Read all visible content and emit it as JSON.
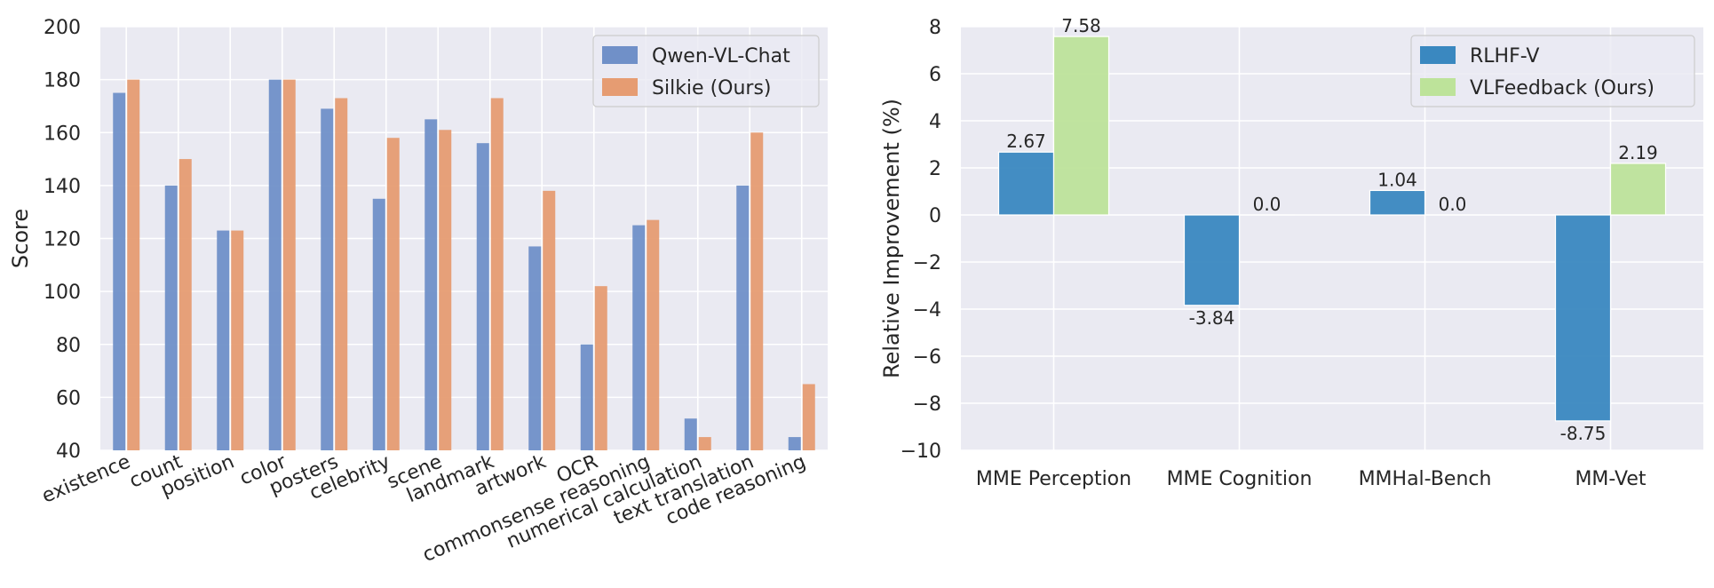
{
  "colors": {
    "background": "#eaeaf2",
    "grid": "#ffffff",
    "text": "#262626",
    "legend_border": "#cccccc"
  },
  "chart_data": [
    {
      "type": "bar",
      "title": "",
      "xlabel": "",
      "ylabel": "Score",
      "ylim": [
        40,
        200
      ],
      "yticks": [
        40,
        60,
        80,
        100,
        120,
        140,
        160,
        180,
        200
      ],
      "grid": true,
      "legend_position": "top-right",
      "xtick_rotation": "30-degree",
      "categories": [
        "existence",
        "count",
        "position",
        "color",
        "posters",
        "celebrity",
        "scene",
        "landmark",
        "artwork",
        "OCR",
        "commonsense reasoning",
        "numerical calculation",
        "text translation",
        "code reasoning"
      ],
      "series": [
        {
          "name": "Qwen-VL-Chat",
          "color": "#7090c8",
          "values": [
            175,
            140,
            123,
            180,
            169,
            135,
            165,
            156,
            117,
            80,
            125,
            52,
            140,
            45
          ]
        },
        {
          "name": "Silkie (Ours)",
          "color": "#e69c72",
          "values": [
            180,
            150,
            123,
            180,
            173,
            158,
            161,
            173,
            138,
            102,
            127,
            45,
            160,
            65
          ]
        }
      ]
    },
    {
      "type": "bar",
      "title": "",
      "xlabel": "",
      "ylabel": "Relative Improvement (%)",
      "ylim": [
        -10,
        8
      ],
      "yticks": [
        -10,
        -8,
        -6,
        -4,
        -2,
        0,
        2,
        4,
        6,
        8
      ],
      "ytick_labels": [
        "−10",
        "−8",
        "−6",
        "−4",
        "−2",
        "0",
        "2",
        "4",
        "6",
        "8"
      ],
      "grid": true,
      "legend_position": "top-right",
      "categories": [
        "MME Perception",
        "MME Cognition",
        "MMHal-Bench",
        "MM-Vet"
      ],
      "series": [
        {
          "name": "RLHF-V",
          "color": "#3a88c0",
          "values": [
            2.67,
            -3.84,
            1.04,
            -8.75
          ],
          "labels": [
            "2.67",
            "-3.84",
            "1.04",
            "-8.75"
          ]
        },
        {
          "name": "VLFeedback (Ours)",
          "color": "#bde39a",
          "values": [
            7.58,
            0.0,
            0.0,
            2.19
          ],
          "labels": [
            "7.58",
            "0.0",
            "0.0",
            "2.19"
          ]
        }
      ]
    }
  ]
}
